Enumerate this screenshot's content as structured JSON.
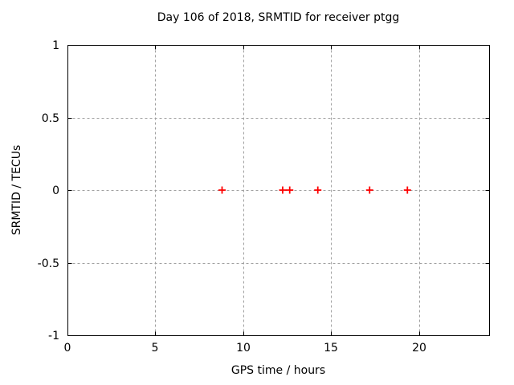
{
  "window": {
    "title": "Day 106 of 2018, SRMTID for receiver ptgg"
  },
  "chart_data": {
    "type": "scatter",
    "title": "Day 106 of 2018, SRMTID for receiver ptgg",
    "xlabel": "GPS time / hours",
    "ylabel": "SRMTID / TECUs",
    "xlim": [
      0,
      24
    ],
    "ylim": [
      -1,
      1
    ],
    "xticks": [
      0,
      5,
      10,
      15,
      20
    ],
    "xtick_labels": [
      "0",
      "5",
      "10",
      "15",
      "20"
    ],
    "yticks": [
      -1,
      -0.5,
      0,
      0.5,
      1
    ],
    "ytick_labels": [
      "-1",
      "-0.5",
      "0",
      "0.5",
      "1"
    ],
    "grid": true,
    "legend": "none",
    "series": [
      {
        "name": "SRMTID",
        "marker": "plus",
        "color": "#ff0000",
        "points": [
          {
            "x": 8.8,
            "y": 0
          },
          {
            "x": 12.25,
            "y": 0
          },
          {
            "x": 12.65,
            "y": 0
          },
          {
            "x": 14.25,
            "y": 0
          },
          {
            "x": 17.2,
            "y": 0
          },
          {
            "x": 19.35,
            "y": 0
          }
        ]
      }
    ]
  },
  "colors": {
    "background": "#ffffff",
    "border": "#000000",
    "grid": "#a0a0a0",
    "text": "#000000",
    "marker": "#ff0000"
  }
}
